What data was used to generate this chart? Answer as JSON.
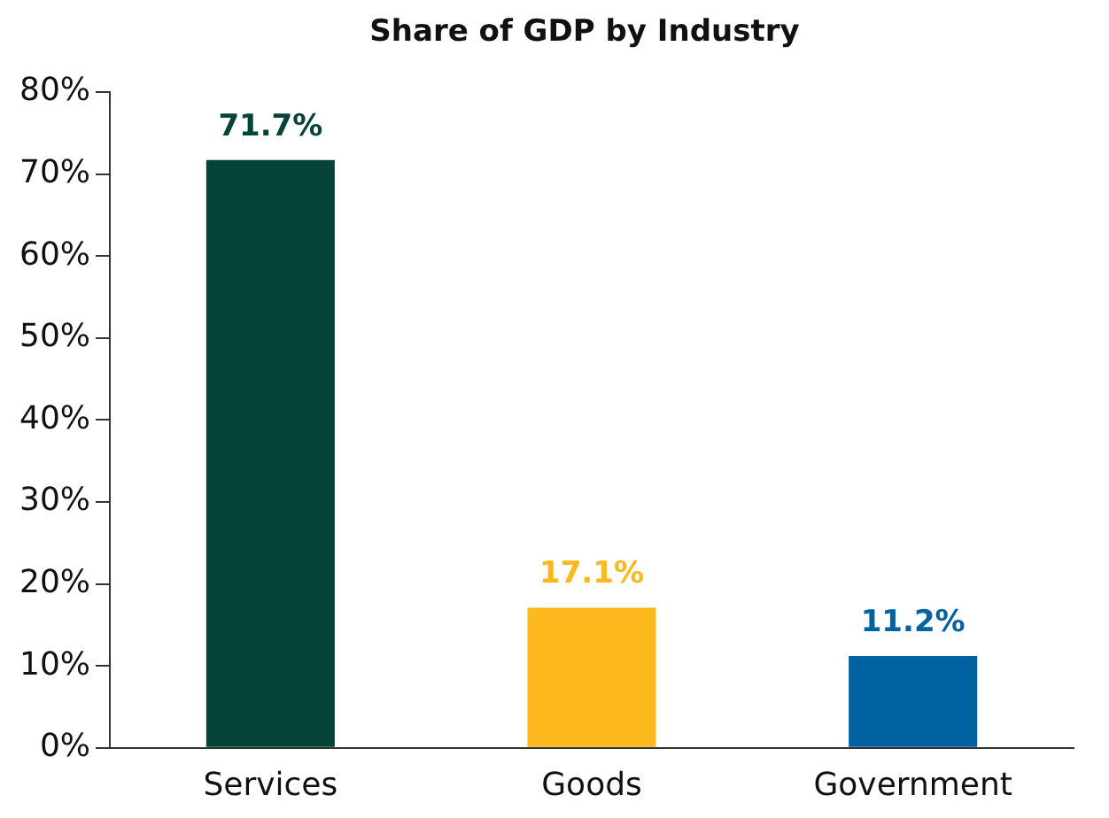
{
  "chart_data": {
    "type": "bar",
    "title": "Share of GDP by Industry",
    "categories": [
      "Services",
      "Goods",
      "Government"
    ],
    "values": [
      71.7,
      17.1,
      11.2
    ],
    "colors": [
      "#06443a",
      "#fdb81e",
      "#0062a0"
    ],
    "value_labels": [
      "71.7%",
      "17.1%",
      "11.2%"
    ],
    "ylim": [
      0,
      80
    ],
    "yticks": [
      {
        "value": 0,
        "label": "0%"
      },
      {
        "value": 10,
        "label": "10%"
      },
      {
        "value": 20,
        "label": "20%"
      },
      {
        "value": 30,
        "label": "30%"
      },
      {
        "value": 40,
        "label": "40%"
      },
      {
        "value": 50,
        "label": "50%"
      },
      {
        "value": 60,
        "label": "60%"
      },
      {
        "value": 70,
        "label": "70%"
      },
      {
        "value": 80,
        "label": "80%"
      }
    ],
    "grid": false,
    "legend": false
  }
}
